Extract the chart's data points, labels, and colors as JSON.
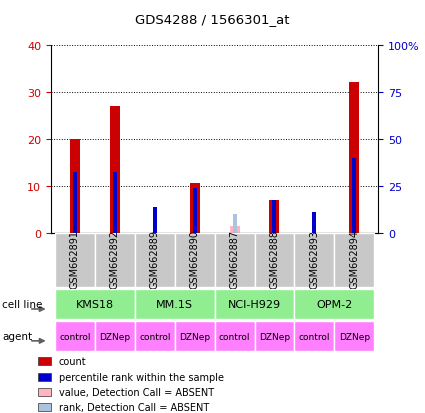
{
  "title": "GDS4288 / 1566301_at",
  "samples": [
    "GSM662891",
    "GSM662892",
    "GSM662889",
    "GSM662890",
    "GSM662887",
    "GSM662888",
    "GSM662893",
    "GSM662894"
  ],
  "count_values": [
    20,
    27,
    0,
    10.5,
    0,
    7,
    0,
    32
  ],
  "percentile_values": [
    13,
    13,
    5.5,
    9.5,
    0,
    7,
    4.5,
    16
  ],
  "absent_count": [
    0,
    0,
    0,
    0,
    1.5,
    0,
    0,
    0
  ],
  "absent_rank": [
    0,
    0,
    0,
    0,
    4,
    0,
    0,
    0
  ],
  "cell_lines": [
    {
      "label": "KMS18",
      "span": [
        0,
        2
      ]
    },
    {
      "label": "MM.1S",
      "span": [
        2,
        4
      ]
    },
    {
      "label": "NCI-H929",
      "span": [
        4,
        6
      ]
    },
    {
      "label": "OPM-2",
      "span": [
        6,
        8
      ]
    }
  ],
  "agents": [
    "control",
    "DZNep",
    "control",
    "DZNep",
    "control",
    "DZNep",
    "control",
    "DZNep"
  ],
  "ylim_left": [
    0,
    40
  ],
  "ylim_right": [
    0,
    100
  ],
  "yticks_left": [
    0,
    10,
    20,
    30,
    40
  ],
  "ytick_labels_left": [
    "0",
    "10",
    "20",
    "30",
    "40"
  ],
  "yticks_right": [
    0,
    25,
    50,
    75,
    100
  ],
  "ytick_labels_right": [
    "0",
    "25",
    "50",
    "75",
    "100%"
  ],
  "color_red": "#cc0000",
  "color_blue": "#0000cc",
  "color_absent_count": "#ffb6c1",
  "color_absent_rank": "#aac4de",
  "color_cell_line_bg": "#90ee90",
  "color_agent_bg": "#ff80ff",
  "color_sample_bg": "#c8c8c8",
  "red_bar_width": 0.25,
  "blue_bar_width": 0.1,
  "legend_items": [
    {
      "color": "#cc0000",
      "label": "count"
    },
    {
      "color": "#0000cc",
      "label": "percentile rank within the sample"
    },
    {
      "color": "#ffb6c1",
      "label": "value, Detection Call = ABSENT"
    },
    {
      "color": "#aac4de",
      "label": "rank, Detection Call = ABSENT"
    }
  ],
  "figsize": [
    4.25,
    4.14
  ],
  "dpi": 100
}
